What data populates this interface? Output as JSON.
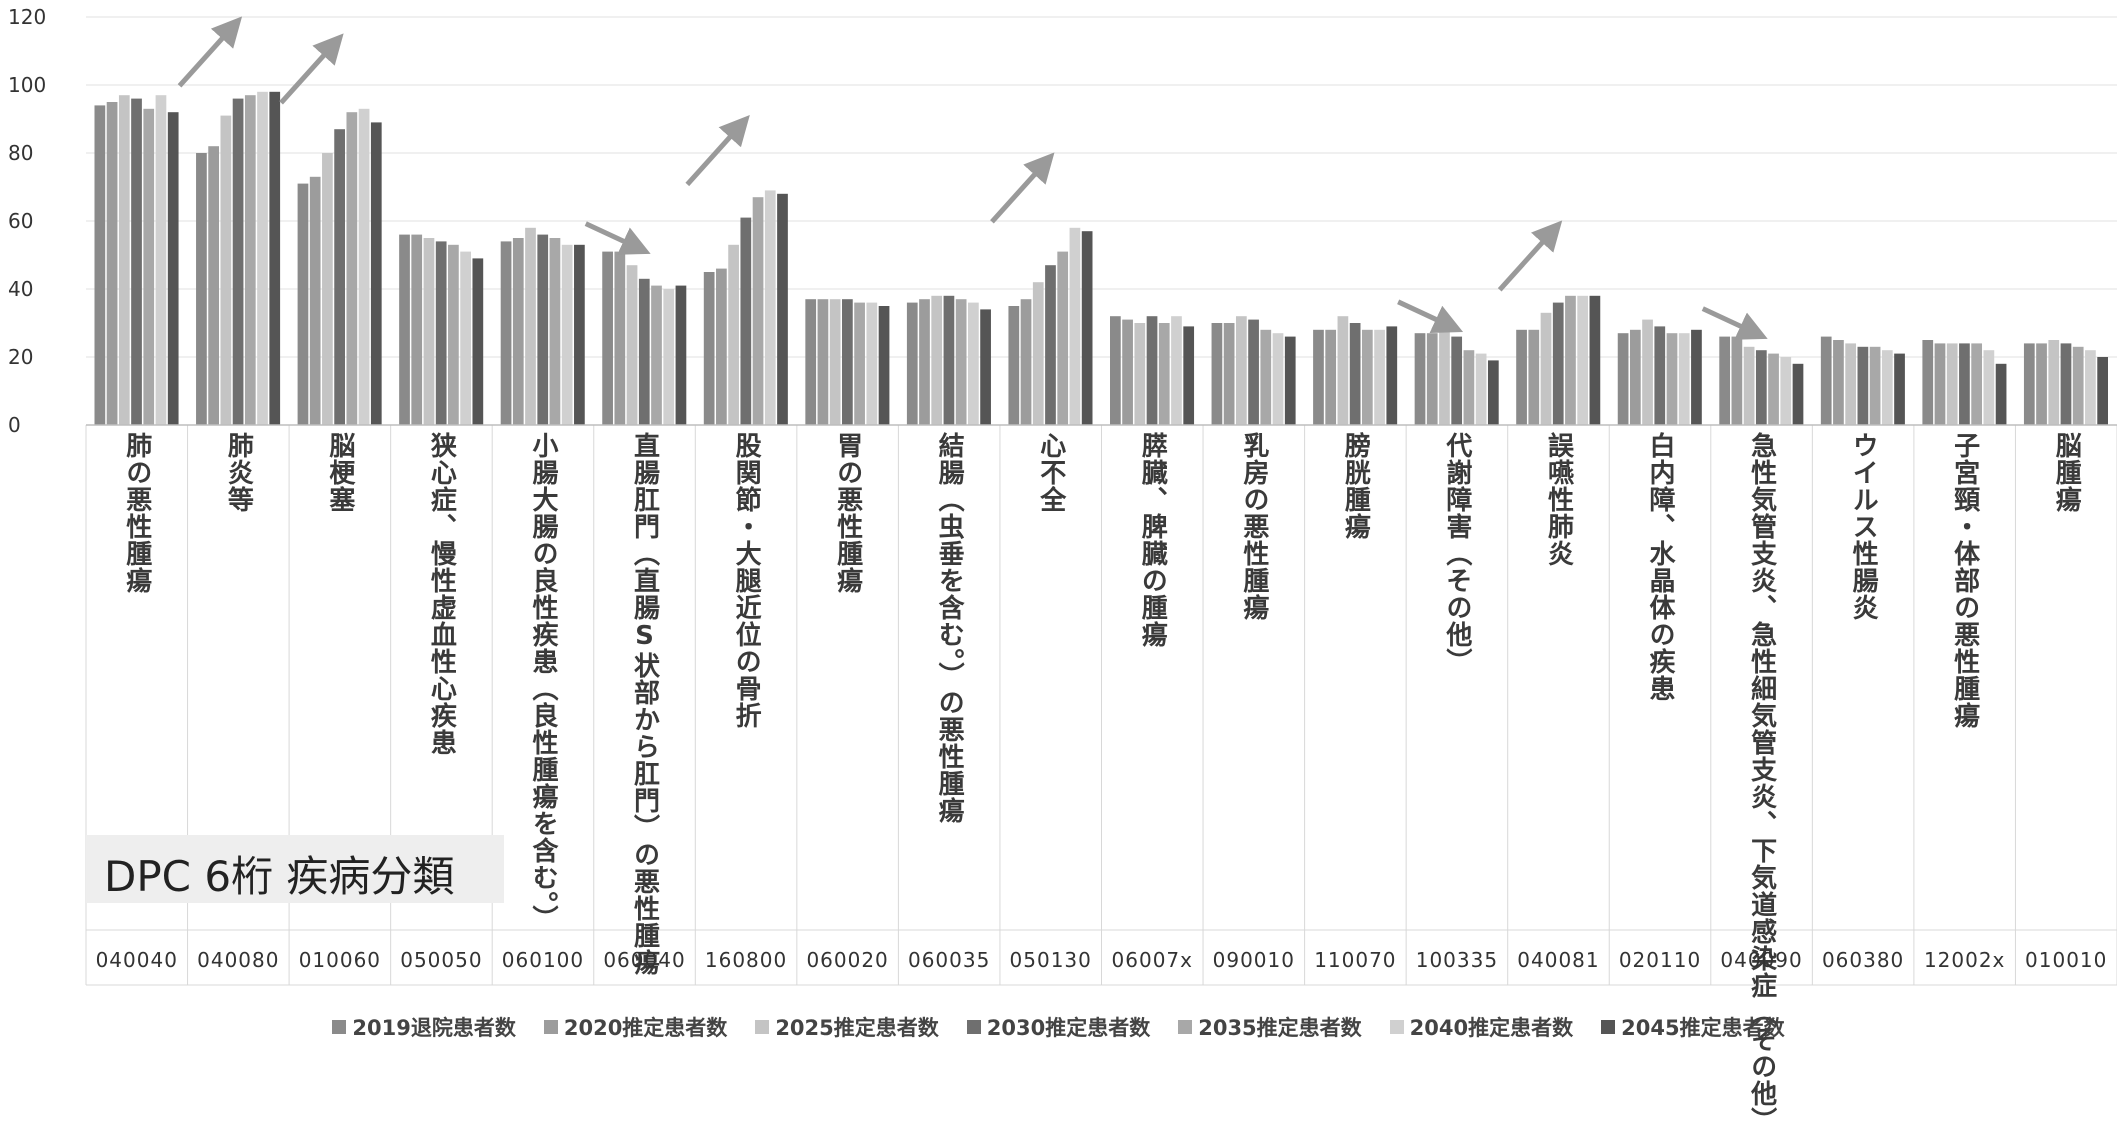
{
  "chart_data": {
    "type": "bar",
    "ylim": [
      0,
      120
    ],
    "yticks": [
      0,
      20,
      40,
      60,
      80,
      100,
      120
    ],
    "grid": true,
    "legend_position": "bottom",
    "annotation": "DPC 6桁 疾病分類",
    "categories": [
      {
        "label": "肺の悪性腫瘍",
        "code": "040040"
      },
      {
        "label": "肺炎等",
        "code": "040080"
      },
      {
        "label": "脳梗塞",
        "code": "010060"
      },
      {
        "label": "狭心症、慢性虚血性心疾患",
        "code": "050050"
      },
      {
        "label": "小腸大腸の良性疾患（良性腫瘍を含む。）",
        "code": "060100"
      },
      {
        "label": "直腸肛門（直腸S状部から肛門）の悪性腫瘍",
        "code": "060040"
      },
      {
        "label": "股関節・大腿近位の骨折",
        "code": "160800"
      },
      {
        "label": "胃の悪性腫瘍",
        "code": "060020"
      },
      {
        "label": "結腸（虫垂を含む。）の悪性腫瘍",
        "code": "060035"
      },
      {
        "label": "心不全",
        "code": "050130"
      },
      {
        "label": "膵臓、脾臓の腫瘍",
        "code": "06007x"
      },
      {
        "label": "乳房の悪性腫瘍",
        "code": "090010"
      },
      {
        "label": "膀胱腫瘍",
        "code": "110070"
      },
      {
        "label": "代謝障害（その他）",
        "code": "100335"
      },
      {
        "label": "誤嚥性肺炎",
        "code": "040081"
      },
      {
        "label": "白内障、水晶体の疾患",
        "code": "020110"
      },
      {
        "label": "急性気管支炎、急性細気管支炎、下気道感染症（その他）",
        "code": "040090"
      },
      {
        "label": "ウイルス性腸炎",
        "code": "060380"
      },
      {
        "label": "子宮頸・体部の悪性腫瘍",
        "code": "12002x"
      },
      {
        "label": "脳腫瘍",
        "code": "010010"
      }
    ],
    "series": [
      {
        "name": "2019退院患者数",
        "color": "#8a8a8a",
        "values": [
          94,
          80,
          71,
          56,
          54,
          51,
          45,
          37,
          36,
          35,
          32,
          30,
          28,
          27,
          28,
          27,
          26,
          26,
          25,
          24
        ]
      },
      {
        "name": "2020推定患者数",
        "color": "#9c9c9c",
        "values": [
          95,
          82,
          73,
          56,
          55,
          51,
          46,
          37,
          37,
          37,
          31,
          30,
          28,
          27,
          28,
          28,
          26,
          25,
          24,
          24
        ]
      },
      {
        "name": "2025推定患者数",
        "color": "#c4c4c4",
        "values": [
          97,
          91,
          80,
          55,
          58,
          47,
          53,
          37,
          38,
          42,
          30,
          32,
          32,
          28,
          33,
          31,
          23,
          24,
          24,
          25
        ]
      },
      {
        "name": "2030推定患者数",
        "color": "#6f6f6f",
        "values": [
          96,
          96,
          87,
          54,
          56,
          43,
          61,
          37,
          38,
          47,
          32,
          31,
          30,
          26,
          36,
          29,
          22,
          23,
          24,
          24
        ]
      },
      {
        "name": "2035推定患者数",
        "color": "#a8a8a8",
        "values": [
          93,
          97,
          92,
          53,
          55,
          41,
          67,
          36,
          37,
          51,
          30,
          28,
          28,
          22,
          38,
          27,
          21,
          23,
          24,
          23
        ]
      },
      {
        "name": "2040推定患者数",
        "color": "#d0d0d0",
        "values": [
          97,
          98,
          93,
          51,
          53,
          40,
          69,
          36,
          36,
          58,
          32,
          27,
          28,
          21,
          38,
          27,
          20,
          22,
          22,
          22
        ]
      },
      {
        "name": "2045推定患者数",
        "color": "#555555",
        "values": [
          92,
          98,
          89,
          49,
          53,
          41,
          68,
          35,
          34,
          57,
          29,
          26,
          29,
          19,
          38,
          28,
          18,
          21,
          18,
          20
        ]
      }
    ],
    "trend_arrows": [
      {
        "category": "040080",
        "direction": "up"
      },
      {
        "category": "010060",
        "direction": "up"
      },
      {
        "category": "060040",
        "direction": "down"
      },
      {
        "category": "160800",
        "direction": "up"
      },
      {
        "category": "050130",
        "direction": "up"
      },
      {
        "category": "100335",
        "direction": "down"
      },
      {
        "category": "040081",
        "direction": "up"
      },
      {
        "category": "040090",
        "direction": "down"
      }
    ]
  }
}
